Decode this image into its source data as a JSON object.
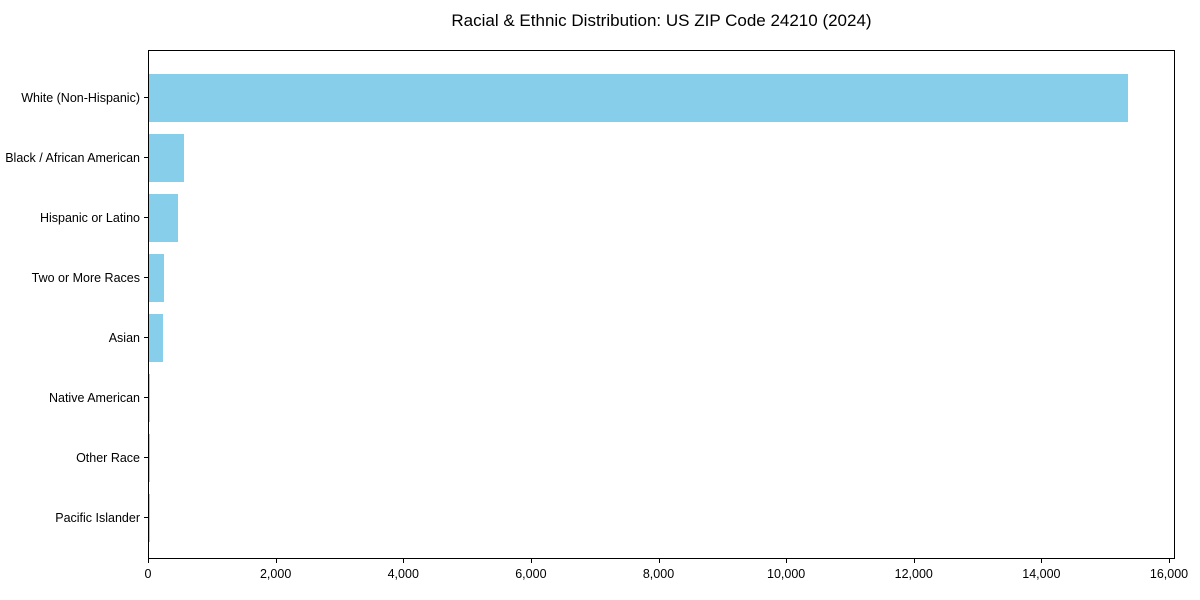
{
  "title": "Racial & Ethnic Distribution: US ZIP Code 24210 (2024)",
  "colors": {
    "bar": "#87CEEB",
    "axis": "#000000",
    "text": "#000000",
    "background": "#FFFFFF"
  },
  "chart_data": {
    "type": "bar",
    "orientation": "horizontal",
    "title": "Racial & Ethnic Distribution: US ZIP Code 24210 (2024)",
    "categories": [
      "White (Non-Hispanic)",
      "Black / African American",
      "Hispanic or Latino",
      "Two or More Races",
      "Asian",
      "Native American",
      "Other Race",
      "Pacific Islander"
    ],
    "values": [
      15340,
      555,
      450,
      230,
      220,
      15,
      8,
      3
    ],
    "xlabel": "",
    "ylabel": "",
    "xlim": [
      0,
      16100
    ],
    "x_ticks": [
      0,
      2000,
      4000,
      6000,
      8000,
      10000,
      12000,
      14000,
      16000
    ],
    "x_tick_labels": [
      "0",
      "2,000",
      "4,000",
      "6,000",
      "8,000",
      "10,000",
      "12,000",
      "14,000",
      "16,000"
    ],
    "grid": false,
    "legend": null,
    "bar_color": "#87CEEB"
  }
}
